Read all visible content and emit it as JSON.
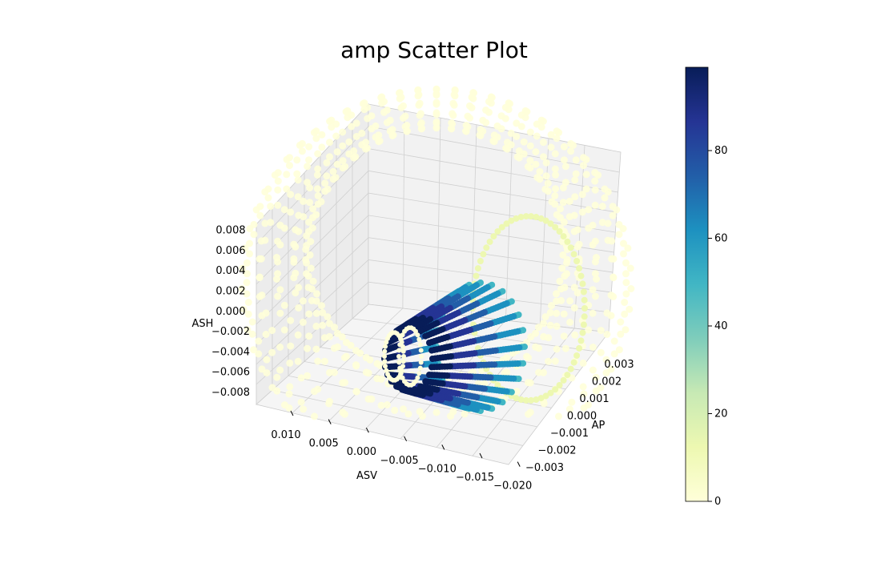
{
  "chart_data": {
    "type": "scatter",
    "projection": "3d",
    "title": "amp Scatter Plot",
    "xlabel": "ASV",
    "ylabel": "AP",
    "zlabel": "ASH",
    "xlim": [
      0.013,
      -0.021
    ],
    "ylim": [
      -0.0035,
      0.0035
    ],
    "zlim": [
      -0.0085,
      0.0085
    ],
    "xticks": [
      "0.010",
      "0.005",
      "0.000",
      "−0.005",
      "−0.010",
      "−0.015",
      "−0.020"
    ],
    "yticks": [
      "−0.003",
      "−0.002",
      "−0.001",
      "0.000",
      "0.001",
      "0.002",
      "0.003"
    ],
    "zticks": [
      "−0.008",
      "−0.006",
      "−0.004",
      "−0.002",
      "0.000",
      "0.002",
      "0.004",
      "0.006",
      "0.008"
    ],
    "grid": true,
    "colormap": "YlGnBu",
    "color_variable": "amp",
    "colorbar": {
      "min": 0,
      "max": 99,
      "ticks": [
        "0",
        "20",
        "40",
        "60",
        "80"
      ],
      "position": "right"
    },
    "series": [
      {
        "amp_range": [
          0,
          10
        ],
        "shape": "large hollow toroidal shell of scatter points",
        "color": "#ffffd9"
      },
      {
        "amp_range": [
          5,
          15
        ],
        "shape": "ring loop at positive AP",
        "color": "#edf8b1"
      },
      {
        "amp_range": [
          20,
          99
        ],
        "shape": "dense truncated cone of points near center",
        "color_low": "#7fcdbb",
        "color_high": "#081d58"
      }
    ]
  }
}
